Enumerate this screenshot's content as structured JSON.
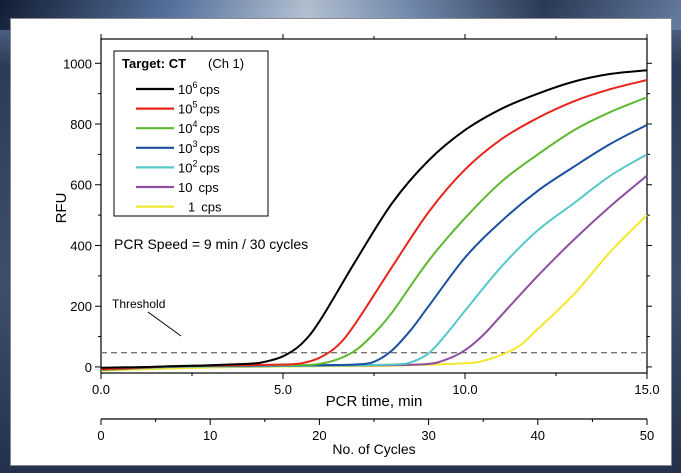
{
  "chart_data": {
    "type": "line",
    "xlabel": "PCR time, min",
    "ylabel": "RFU",
    "secondary_xlabel": "No. of Cycles",
    "xlim": [
      0,
      15
    ],
    "ylim": [
      -20,
      1080
    ],
    "secondary_xlim": [
      0,
      50
    ],
    "x_ticks": [
      "0.0",
      "5.0",
      "10.0",
      "15.0"
    ],
    "y_ticks": [
      "0",
      "200",
      "400",
      "600",
      "800",
      "1000"
    ],
    "secondary_x_ticks": [
      "0",
      "10",
      "20",
      "30",
      "40",
      "50"
    ],
    "legend_title": "Target: CT",
    "legend_title_suffix": "(Ch 1)",
    "legend_position": "top-left",
    "annotation": "PCR Speed = 9 min / 30 cycles",
    "threshold_label": "Threshold",
    "threshold": 47,
    "series": [
      {
        "name_base": "10",
        "name_exp": "6",
        "name_unit": "cps",
        "color": "#000000",
        "x": [
          0,
          2,
          4,
          4.5,
          5.0,
          5.5,
          6.0,
          7.0,
          8.0,
          9.0,
          10.0,
          11.0,
          12.0,
          13.0,
          14.0,
          15.0
        ],
        "y": [
          -3,
          2,
          10,
          17,
          35,
          75,
          150,
          350,
          540,
          680,
          780,
          850,
          900,
          940,
          965,
          977
        ]
      },
      {
        "name_base": "10",
        "name_exp": "5",
        "name_unit": "cps",
        "color": "#e8251c",
        "x": [
          0,
          2,
          4,
          5.0,
          5.5,
          6.0,
          6.5,
          7.0,
          8.0,
          9.0,
          10.0,
          11.0,
          12.0,
          13.0,
          14.0,
          15.0
        ],
        "y": [
          -8,
          2,
          6,
          8,
          12,
          30,
          70,
          145,
          330,
          510,
          650,
          750,
          820,
          875,
          915,
          945
        ]
      },
      {
        "name_base": "10",
        "name_exp": "4",
        "name_unit": "cps",
        "color": "#5fb830",
        "x": [
          0,
          2,
          4,
          5.5,
          6.0,
          6.5,
          7.0,
          7.5,
          8.0,
          9.0,
          10.0,
          11.0,
          12.0,
          13.0,
          14.0,
          15.0
        ],
        "y": [
          -10,
          3,
          6,
          6,
          10,
          25,
          55,
          110,
          180,
          350,
          490,
          610,
          700,
          780,
          840,
          888
        ]
      },
      {
        "name_base": "10",
        "name_exp": "3",
        "name_unit": "cps",
        "color": "#1b4fa2",
        "x": [
          0,
          2,
          4,
          6,
          7.0,
          7.5,
          8.0,
          8.5,
          9.0,
          10.0,
          11.0,
          12.0,
          13.0,
          14.0,
          15.0
        ],
        "y": [
          -10,
          2,
          4,
          6,
          8,
          17,
          55,
          120,
          200,
          360,
          480,
          580,
          660,
          735,
          797
        ]
      },
      {
        "name_base": "10",
        "name_exp": "2",
        "name_unit": "cps",
        "color": "#56c8cc",
        "x": [
          0,
          2,
          4,
          6,
          8.0,
          8.5,
          9.0,
          9.5,
          10.0,
          11.0,
          12.0,
          13.0,
          14.0,
          15.0
        ],
        "y": [
          -10,
          0,
          2,
          4,
          8,
          15,
          45,
          110,
          185,
          330,
          450,
          540,
          630,
          700
        ]
      },
      {
        "name_base": "10",
        "name_exp": "",
        "name_unit": "cps",
        "color": "#8e4fa0",
        "x": [
          0,
          2,
          4,
          6,
          8,
          9.0,
          9.5,
          10.0,
          10.5,
          11.0,
          12.0,
          13.0,
          14.0,
          15.0
        ],
        "y": [
          -10,
          0,
          2,
          4,
          6,
          10,
          25,
          55,
          105,
          170,
          300,
          420,
          530,
          630
        ]
      },
      {
        "name_base": "1",
        "name_exp": "",
        "name_unit": "cps",
        "color": "#f2e830",
        "x": [
          0,
          2,
          4,
          6,
          8,
          10,
          10.5,
          11.0,
          11.5,
          12.0,
          13.0,
          14.0,
          15.0
        ],
        "y": [
          -12,
          -5,
          0,
          2,
          4,
          12,
          20,
          40,
          70,
          125,
          240,
          380,
          500
        ]
      }
    ]
  }
}
